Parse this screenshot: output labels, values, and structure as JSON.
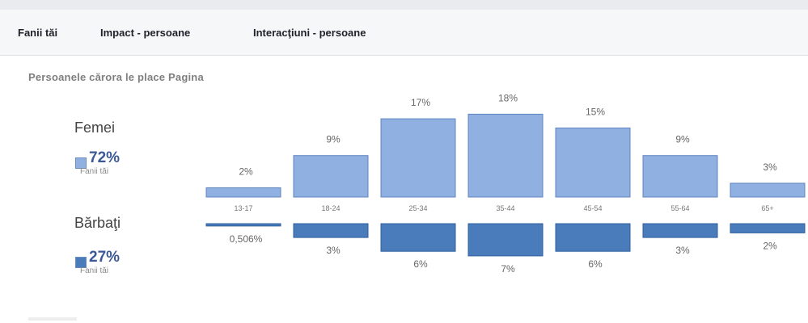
{
  "tabs": [
    {
      "label": "Fanii tăi",
      "active": true
    },
    {
      "label": "Impact - persoane",
      "active": false
    },
    {
      "label": "Interacţiuni - persoane",
      "active": false
    }
  ],
  "subtitle": "Persoanele cărora le place Pagina",
  "women": {
    "label": "Femei",
    "percent": "72%",
    "sub": "Fanii tăi",
    "color": "#8fb0e0"
  },
  "men": {
    "label": "Bărbaţi",
    "percent": "27%",
    "sub": "Fanii tăi",
    "color": "#4a7cbb"
  },
  "chart_data": {
    "type": "bar",
    "categories": [
      "13-17",
      "18-24",
      "25-34",
      "35-44",
      "45-54",
      "55-64",
      "65+"
    ],
    "series": [
      {
        "name": "Femei",
        "values": [
          2,
          9,
          17,
          18,
          15,
          9,
          3
        ],
        "labels": [
          "2%",
          "9%",
          "17%",
          "18%",
          "15%",
          "9%",
          "3%"
        ]
      },
      {
        "name": "Bărbaţi",
        "values": [
          0.506,
          3,
          6,
          7,
          6,
          3,
          2
        ],
        "labels": [
          "0,506%",
          "3%",
          "6%",
          "7%",
          "6%",
          "3%",
          "2%"
        ]
      }
    ]
  }
}
